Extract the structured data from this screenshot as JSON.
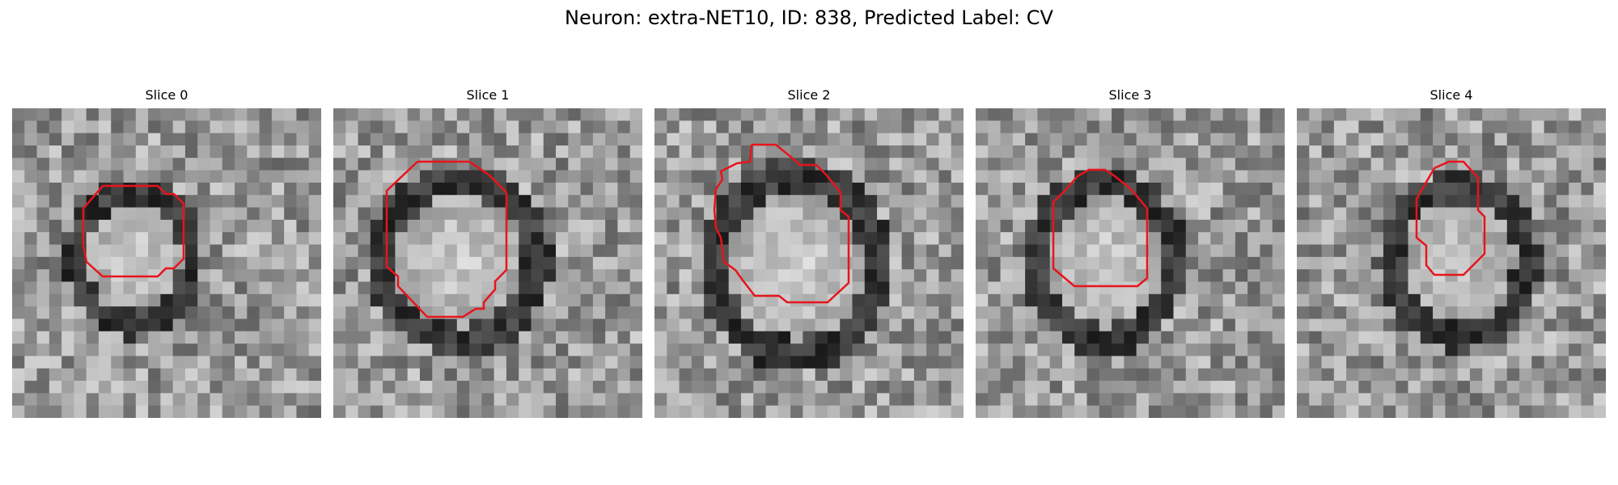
{
  "figure": {
    "title": "Neuron: extra-NET10, ID: 838, Predicted Label: CV"
  },
  "slices": [
    {
      "title": "Slice 0"
    },
    {
      "title": "Slice 1"
    },
    {
      "title": "Slice 2"
    },
    {
      "title": "Slice 3"
    },
    {
      "title": "Slice 4"
    }
  ],
  "style": {
    "outline_color": "#e8141b",
    "background_color": "#ffffff"
  }
}
